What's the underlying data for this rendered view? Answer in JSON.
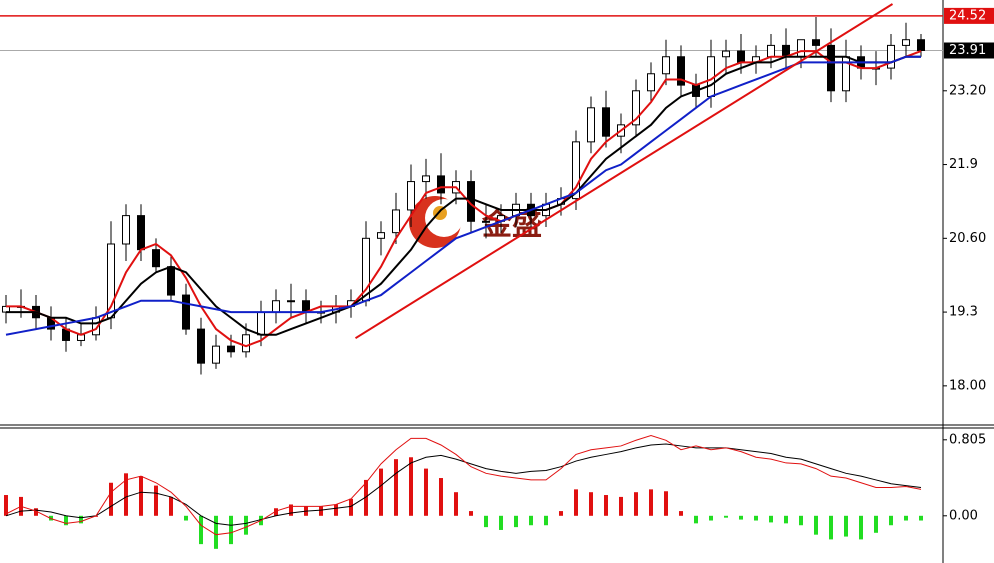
{
  "chart_data": [
    {
      "type": "candlestick",
      "open": [
        19.3,
        19.4,
        19.4,
        19.2,
        19.0,
        18.8,
        18.9,
        19.2,
        20.5,
        21.0,
        20.4,
        20.1,
        19.6,
        19.0,
        18.4,
        18.7,
        18.6,
        18.9,
        19.3,
        19.5,
        19.5,
        19.3,
        19.3,
        19.4,
        19.5,
        20.6,
        20.7,
        21.1,
        21.6,
        21.7,
        21.4,
        21.6,
        20.9,
        20.9,
        21.0,
        21.2,
        21.0,
        21.2,
        21.3,
        22.3,
        22.9,
        22.4,
        22.6,
        23.2,
        23.5,
        23.8,
        23.3,
        23.1,
        23.8,
        23.9,
        23.7,
        23.8,
        24.0,
        23.8,
        24.1,
        24.0,
        23.2,
        23.8,
        23.6,
        23.6,
        24.0,
        24.1
      ],
      "high": [
        19.6,
        19.7,
        19.6,
        19.4,
        19.2,
        19.1,
        19.4,
        20.9,
        21.2,
        21.2,
        20.6,
        20.3,
        19.8,
        19.2,
        18.9,
        18.9,
        19.1,
        19.5,
        19.7,
        19.8,
        19.7,
        19.5,
        19.6,
        19.7,
        20.9,
        20.9,
        21.4,
        21.9,
        22.0,
        22.1,
        21.8,
        21.8,
        21.2,
        21.2,
        21.4,
        21.4,
        21.4,
        21.5,
        22.5,
        23.1,
        23.2,
        22.8,
        23.4,
        23.7,
        24.1,
        24.0,
        23.5,
        24.1,
        24.1,
        24.2,
        24.0,
        24.2,
        24.3,
        24.1,
        24.5,
        24.3,
        24.1,
        24.0,
        23.9,
        24.2,
        24.4,
        24.2
      ],
      "low": [
        19.1,
        19.2,
        19.0,
        18.8,
        18.6,
        18.7,
        18.8,
        19.0,
        20.2,
        20.2,
        20.0,
        19.5,
        18.9,
        18.2,
        18.3,
        18.5,
        18.5,
        18.7,
        19.1,
        19.2,
        19.1,
        19.1,
        19.1,
        19.2,
        19.4,
        20.3,
        20.5,
        20.8,
        21.3,
        21.2,
        21.2,
        20.7,
        20.6,
        20.7,
        20.8,
        20.8,
        20.8,
        21.0,
        21.1,
        22.1,
        22.2,
        22.1,
        22.4,
        23.0,
        23.3,
        23.1,
        22.9,
        22.9,
        23.5,
        23.5,
        23.5,
        23.6,
        23.6,
        23.6,
        23.8,
        23.0,
        23.0,
        23.4,
        23.3,
        23.4,
        23.8,
        23.8
      ],
      "close": [
        19.4,
        19.4,
        19.2,
        19.0,
        18.8,
        18.9,
        19.2,
        20.5,
        21.0,
        20.4,
        20.1,
        19.6,
        19.0,
        18.4,
        18.7,
        18.6,
        18.9,
        19.3,
        19.5,
        19.5,
        19.3,
        19.3,
        19.4,
        19.5,
        20.6,
        20.7,
        21.1,
        21.6,
        21.7,
        21.4,
        21.6,
        20.9,
        20.9,
        21.0,
        21.2,
        21.0,
        21.2,
        21.3,
        22.3,
        22.9,
        22.4,
        22.6,
        23.2,
        23.5,
        23.8,
        23.3,
        23.1,
        23.8,
        23.9,
        23.7,
        23.8,
        24.0,
        23.8,
        24.1,
        24.0,
        23.2,
        23.8,
        23.6,
        23.6,
        24.0,
        24.1,
        23.91
      ],
      "overlays": [
        {
          "color": "#e01010",
          "values": [
            19.4,
            19.4,
            19.3,
            19.2,
            19.0,
            18.9,
            19.0,
            19.4,
            20.0,
            20.4,
            20.5,
            20.3,
            19.9,
            19.4,
            19.0,
            18.8,
            18.7,
            18.8,
            19.0,
            19.2,
            19.3,
            19.4,
            19.4,
            19.4,
            19.7,
            20.1,
            20.6,
            21.0,
            21.4,
            21.5,
            21.5,
            21.2,
            21.0,
            20.9,
            21.0,
            21.1,
            21.1,
            21.2,
            21.5,
            22.0,
            22.3,
            22.5,
            22.7,
            23.0,
            23.4,
            23.4,
            23.3,
            23.4,
            23.6,
            23.7,
            23.7,
            23.8,
            23.8,
            23.9,
            23.9,
            23.7,
            23.7,
            23.6,
            23.6,
            23.7,
            23.8,
            23.9
          ]
        },
        {
          "color": "#000000",
          "values": [
            19.3,
            19.3,
            19.3,
            19.2,
            19.2,
            19.1,
            19.1,
            19.2,
            19.5,
            19.8,
            20.0,
            20.1,
            20.0,
            19.7,
            19.4,
            19.2,
            19.0,
            18.9,
            18.9,
            19.0,
            19.1,
            19.2,
            19.3,
            19.4,
            19.6,
            19.8,
            20.1,
            20.4,
            20.8,
            21.1,
            21.3,
            21.3,
            21.2,
            21.1,
            21.1,
            21.1,
            21.1,
            21.2,
            21.4,
            21.7,
            22.0,
            22.2,
            22.4,
            22.6,
            22.9,
            23.1,
            23.2,
            23.3,
            23.5,
            23.6,
            23.7,
            23.7,
            23.8,
            23.8,
            23.8,
            23.8,
            23.8,
            23.7,
            23.7,
            23.7,
            23.8,
            23.8
          ]
        },
        {
          "color": "#1020c8",
          "values": [
            18.9,
            18.95,
            19.0,
            19.05,
            19.1,
            19.15,
            19.2,
            19.3,
            19.4,
            19.5,
            19.5,
            19.5,
            19.45,
            19.4,
            19.35,
            19.3,
            19.3,
            19.3,
            19.3,
            19.3,
            19.3,
            19.3,
            19.35,
            19.4,
            19.5,
            19.6,
            19.8,
            20.0,
            20.2,
            20.4,
            20.6,
            20.7,
            20.8,
            20.9,
            21.0,
            21.1,
            21.2,
            21.3,
            21.4,
            21.6,
            21.8,
            21.9,
            22.1,
            22.3,
            22.5,
            22.7,
            22.9,
            23.1,
            23.2,
            23.3,
            23.4,
            23.5,
            23.6,
            23.7,
            23.7,
            23.7,
            23.7,
            23.7,
            23.7,
            23.7,
            23.8,
            23.8
          ]
        }
      ],
      "trendline": {
        "color": "#e01010",
        "x": [
          23.3,
          59.1
        ],
        "y": [
          18.84,
          24.73
        ]
      },
      "price_lines": [
        {
          "value": 24.52,
          "color": "#e01010"
        },
        {
          "value": 23.91,
          "color": "#000000"
        }
      ],
      "ylim": [
        17.31,
        24.8
      ],
      "yticks": [
        {
          "value": 18,
          "label": "18.00"
        },
        19.3,
        {
          "value": 20.6,
          "label": "20.60"
        },
        21.9,
        {
          "value": 23.2,
          "label": "23.20"
        }
      ],
      "watermark": "金盛"
    },
    {
      "type": "macd",
      "histogram": [
        0.22,
        0.2,
        0.08,
        -0.05,
        -0.1,
        -0.08,
        0.0,
        0.35,
        0.45,
        0.42,
        0.32,
        0.2,
        -0.05,
        -0.3,
        -0.35,
        -0.3,
        -0.2,
        -0.1,
        0.08,
        0.12,
        0.1,
        0.1,
        0.12,
        0.18,
        0.38,
        0.5,
        0.6,
        0.62,
        0.5,
        0.4,
        0.25,
        0.05,
        -0.12,
        -0.15,
        -0.12,
        -0.1,
        -0.1,
        0.05,
        0.28,
        0.25,
        0.22,
        0.2,
        0.25,
        0.28,
        0.26,
        0.05,
        -0.08,
        -0.05,
        -0.02,
        -0.04,
        -0.05,
        -0.07,
        -0.08,
        -0.1,
        -0.2,
        -0.25,
        -0.22,
        -0.25,
        -0.18,
        -0.1,
        -0.05,
        -0.05
      ],
      "up_color": "#e01010",
      "down_color": "#22dd22",
      "lines": [
        {
          "color": "#000000",
          "values": [
            0.0,
            0.05,
            0.06,
            0.04,
            0.0,
            -0.02,
            0.0,
            0.1,
            0.2,
            0.25,
            0.24,
            0.2,
            0.12,
            0.0,
            -0.08,
            -0.1,
            -0.08,
            -0.04,
            0.0,
            0.03,
            0.05,
            0.06,
            0.08,
            0.1,
            0.2,
            0.32,
            0.45,
            0.56,
            0.62,
            0.64,
            0.6,
            0.55,
            0.5,
            0.47,
            0.45,
            0.47,
            0.48,
            0.52,
            0.58,
            0.62,
            0.65,
            0.68,
            0.72,
            0.75,
            0.76,
            0.74,
            0.72,
            0.72,
            0.72,
            0.7,
            0.68,
            0.66,
            0.62,
            0.6,
            0.55,
            0.5,
            0.45,
            0.42,
            0.38,
            0.34,
            0.32,
            0.3
          ]
        },
        {
          "color": "#e01010",
          "values": [
            0.02,
            0.1,
            0.05,
            -0.03,
            -0.08,
            -0.06,
            0.0,
            0.25,
            0.38,
            0.42,
            0.35,
            0.25,
            0.1,
            -0.1,
            -0.2,
            -0.18,
            -0.12,
            -0.05,
            0.05,
            0.1,
            0.1,
            0.1,
            0.12,
            0.18,
            0.35,
            0.55,
            0.7,
            0.82,
            0.82,
            0.75,
            0.65,
            0.52,
            0.45,
            0.42,
            0.4,
            0.38,
            0.38,
            0.5,
            0.65,
            0.7,
            0.72,
            0.74,
            0.8,
            0.85,
            0.8,
            0.7,
            0.74,
            0.7,
            0.72,
            0.68,
            0.62,
            0.6,
            0.56,
            0.55,
            0.5,
            0.42,
            0.4,
            0.35,
            0.3,
            0.3,
            0.31,
            0.28
          ]
        }
      ],
      "ylim": [
        -0.5,
        0.93
      ],
      "yticks": [
        {
          "value": 0,
          "label": "0.00"
        },
        0.805
      ]
    }
  ]
}
